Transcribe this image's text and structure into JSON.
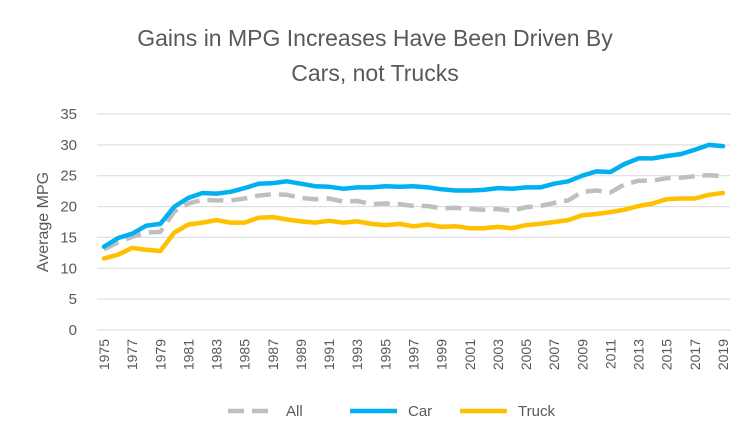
{
  "chart_data": {
    "type": "line",
    "title_lines": [
      "Gains in MPG Increases Have Been Driven By",
      "Cars, not Trucks"
    ],
    "xlabel": "",
    "ylabel": "Average MPG",
    "ylim": [
      0,
      35
    ],
    "yticks": [
      0,
      5,
      10,
      15,
      20,
      25,
      30,
      35
    ],
    "x": [
      1975,
      1976,
      1977,
      1978,
      1979,
      1980,
      1981,
      1982,
      1983,
      1984,
      1985,
      1986,
      1987,
      1988,
      1989,
      1990,
      1991,
      1992,
      1993,
      1994,
      1995,
      1996,
      1997,
      1998,
      1999,
      2000,
      2001,
      2002,
      2003,
      2004,
      2005,
      2006,
      2007,
      2008,
      2009,
      2010,
      2011,
      2012,
      2013,
      2014,
      2015,
      2016,
      2017,
      2018,
      2019
    ],
    "xtick_labels": [
      "1975",
      "1977",
      "1979",
      "1981",
      "1983",
      "1985",
      "1987",
      "1989",
      "1991",
      "1993",
      "1995",
      "1997",
      "1999",
      "2001",
      "2003",
      "2005",
      "2007",
      "2009",
      "2011",
      "2013",
      "2015",
      "2017",
      "2019"
    ],
    "grid": true,
    "legend_position": "bottom",
    "series": [
      {
        "name": "All",
        "color": "#bfbfbf",
        "dash": true,
        "values": [
          13.1,
          14.2,
          15.1,
          15.8,
          15.9,
          19.2,
          20.5,
          21.1,
          21.0,
          21.0,
          21.3,
          21.8,
          22.0,
          21.9,
          21.4,
          21.2,
          21.3,
          20.8,
          20.9,
          20.4,
          20.5,
          20.4,
          20.1,
          20.1,
          19.7,
          19.8,
          19.6,
          19.5,
          19.6,
          19.3,
          19.9,
          20.1,
          20.6,
          21.0,
          22.4,
          22.6,
          22.3,
          23.6,
          24.2,
          24.2,
          24.6,
          24.7,
          24.9,
          25.1,
          24.9
        ]
      },
      {
        "name": "Car",
        "color": "#00b0f0",
        "dash": false,
        "values": [
          13.5,
          14.9,
          15.6,
          16.9,
          17.2,
          20.0,
          21.4,
          22.2,
          22.1,
          22.4,
          23.0,
          23.7,
          23.8,
          24.1,
          23.7,
          23.3,
          23.2,
          22.9,
          23.1,
          23.1,
          23.3,
          23.2,
          23.3,
          23.1,
          22.8,
          22.6,
          22.6,
          22.7,
          23.0,
          22.9,
          23.1,
          23.1,
          23.7,
          24.1,
          25.0,
          25.7,
          25.6,
          26.9,
          27.8,
          27.8,
          28.2,
          28.5,
          29.2,
          30.0,
          29.8
        ]
      },
      {
        "name": "Truck",
        "color": "#ffc000",
        "dash": false,
        "values": [
          11.6,
          12.2,
          13.3,
          13.0,
          12.8,
          15.8,
          17.1,
          17.4,
          17.8,
          17.4,
          17.4,
          18.2,
          18.3,
          17.9,
          17.6,
          17.4,
          17.7,
          17.4,
          17.6,
          17.2,
          17.0,
          17.2,
          16.8,
          17.1,
          16.7,
          16.8,
          16.5,
          16.5,
          16.7,
          16.5,
          17.0,
          17.2,
          17.5,
          17.8,
          18.6,
          18.8,
          19.1,
          19.5,
          20.1,
          20.5,
          21.2,
          21.3,
          21.3,
          21.9,
          22.2
        ]
      }
    ]
  }
}
